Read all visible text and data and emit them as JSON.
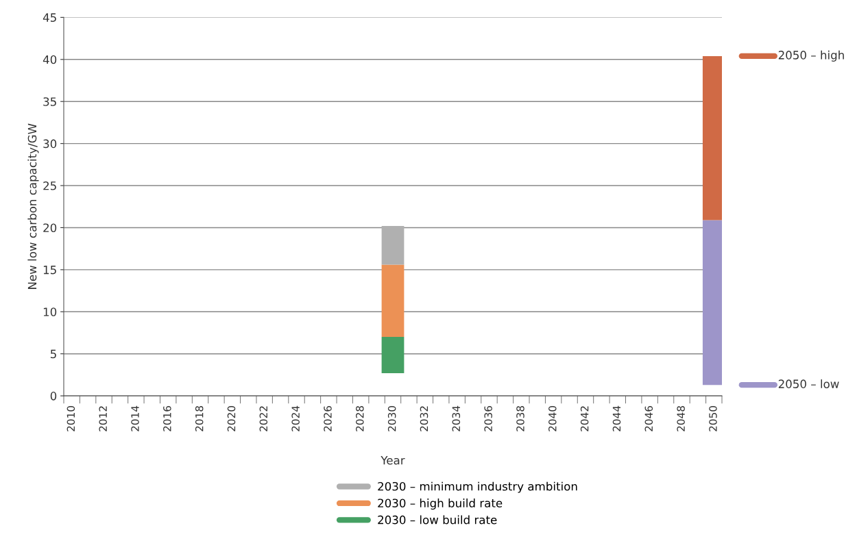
{
  "chart_data": {
    "type": "bar",
    "xlabel": "Year",
    "ylabel": "New low carbon capacity/GW",
    "categories": [
      "2010",
      null,
      "2012",
      null,
      "2014",
      null,
      "2016",
      null,
      "2018",
      null,
      "2020",
      null,
      "2022",
      null,
      "2024",
      null,
      "2026",
      null,
      "2028",
      null,
      "2030",
      null,
      "2032",
      null,
      "2034",
      null,
      "2036",
      null,
      "2038",
      null,
      "2040",
      null,
      "2042",
      null,
      "2044",
      null,
      "2046",
      null,
      "2048",
      null,
      "2050"
    ],
    "series": [
      {
        "name": "2030 – low build rate",
        "color": "#45a063",
        "base": [
          null,
          null,
          null,
          null,
          null,
          null,
          null,
          null,
          null,
          null,
          null,
          null,
          null,
          null,
          null,
          null,
          null,
          null,
          null,
          null,
          2.7,
          null,
          null,
          null,
          null,
          null,
          null,
          null,
          null,
          null,
          null,
          null,
          null,
          null,
          null,
          null,
          null,
          null,
          null,
          null,
          null
        ],
        "values": [
          null,
          null,
          null,
          null,
          null,
          null,
          null,
          null,
          null,
          null,
          null,
          null,
          null,
          null,
          null,
          null,
          null,
          null,
          null,
          null,
          4.3,
          null,
          null,
          null,
          null,
          null,
          null,
          null,
          null,
          null,
          null,
          null,
          null,
          null,
          null,
          null,
          null,
          null,
          null,
          null,
          null
        ]
      },
      {
        "name": "2030 – high build rate",
        "color": "#ec9155",
        "base": [
          null,
          null,
          null,
          null,
          null,
          null,
          null,
          null,
          null,
          null,
          null,
          null,
          null,
          null,
          null,
          null,
          null,
          null,
          null,
          null,
          7,
          null,
          null,
          null,
          null,
          null,
          null,
          null,
          null,
          null,
          null,
          null,
          null,
          null,
          null,
          null,
          null,
          null,
          null,
          null,
          null
        ],
        "values": [
          null,
          null,
          null,
          null,
          null,
          null,
          null,
          null,
          null,
          null,
          null,
          null,
          null,
          null,
          null,
          null,
          null,
          null,
          null,
          null,
          8.6,
          null,
          null,
          null,
          null,
          null,
          null,
          null,
          null,
          null,
          null,
          null,
          null,
          null,
          null,
          null,
          null,
          null,
          null,
          null,
          null
        ]
      },
      {
        "name": "2030 – minimum industry ambition",
        "color": "#b0b0b0",
        "base": [
          null,
          null,
          null,
          null,
          null,
          null,
          null,
          null,
          null,
          null,
          null,
          null,
          null,
          null,
          null,
          null,
          null,
          null,
          null,
          null,
          15.6,
          null,
          null,
          null,
          null,
          null,
          null,
          null,
          null,
          null,
          null,
          null,
          null,
          null,
          null,
          null,
          null,
          null,
          null,
          null,
          null
        ],
        "values": [
          null,
          null,
          null,
          null,
          null,
          null,
          null,
          null,
          null,
          null,
          null,
          null,
          null,
          null,
          null,
          null,
          null,
          null,
          null,
          null,
          4.6,
          null,
          null,
          null,
          null,
          null,
          null,
          null,
          null,
          null,
          null,
          null,
          null,
          null,
          null,
          null,
          null,
          null,
          null,
          null,
          null
        ]
      },
      {
        "name": "2050 – low",
        "color": "#9d95c9",
        "base": [
          null,
          null,
          null,
          null,
          null,
          null,
          null,
          null,
          null,
          null,
          null,
          null,
          null,
          null,
          null,
          null,
          null,
          null,
          null,
          null,
          null,
          null,
          null,
          null,
          null,
          null,
          null,
          null,
          null,
          null,
          null,
          null,
          null,
          null,
          null,
          null,
          null,
          null,
          null,
          null,
          1.3
        ],
        "values": [
          null,
          null,
          null,
          null,
          null,
          null,
          null,
          null,
          null,
          null,
          null,
          null,
          null,
          null,
          null,
          null,
          null,
          null,
          null,
          null,
          null,
          null,
          null,
          null,
          null,
          null,
          null,
          null,
          null,
          null,
          null,
          null,
          null,
          null,
          null,
          null,
          null,
          null,
          null,
          null,
          19.6
        ]
      },
      {
        "name": "2050 – high",
        "color": "#d06a45",
        "base": [
          null,
          null,
          null,
          null,
          null,
          null,
          null,
          null,
          null,
          null,
          null,
          null,
          null,
          null,
          null,
          null,
          null,
          null,
          null,
          null,
          null,
          null,
          null,
          null,
          null,
          null,
          null,
          null,
          null,
          null,
          null,
          null,
          null,
          null,
          null,
          null,
          null,
          null,
          null,
          null,
          20.9
        ],
        "values": [
          null,
          null,
          null,
          null,
          null,
          null,
          null,
          null,
          null,
          null,
          null,
          null,
          null,
          null,
          null,
          null,
          null,
          null,
          null,
          null,
          null,
          null,
          null,
          null,
          null,
          null,
          null,
          null,
          null,
          null,
          null,
          null,
          null,
          null,
          null,
          null,
          null,
          null,
          null,
          null,
          19.5
        ]
      }
    ],
    "ylim": [
      0,
      45
    ],
    "yticks": [
      0,
      5,
      10,
      15,
      20,
      25,
      30,
      35,
      40,
      45
    ],
    "grid": "y",
    "legend": "bottom"
  }
}
